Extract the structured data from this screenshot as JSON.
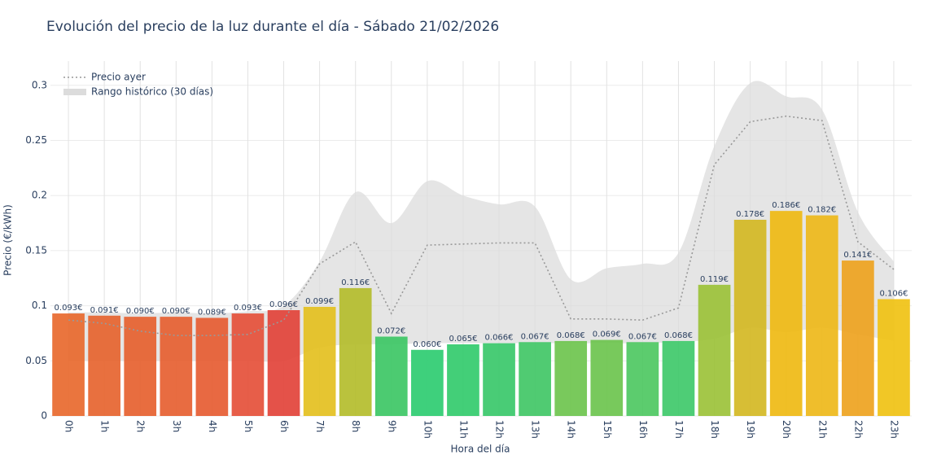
{
  "chart_data": {
    "type": "bar",
    "title": "Evolución del precio de la luz durante el día - Sábado 21/02/2026",
    "x_label": "Hora del día",
    "y_label": "Precio (€/kWh)",
    "categories": [
      "0h",
      "1h",
      "2h",
      "3h",
      "4h",
      "5h",
      "6h",
      "7h",
      "8h",
      "9h",
      "10h",
      "11h",
      "12h",
      "13h",
      "14h",
      "15h",
      "16h",
      "17h",
      "18h",
      "19h",
      "20h",
      "21h",
      "22h",
      "23h"
    ],
    "ylim": [
      0,
      0.322
    ],
    "yticks": [
      0,
      0.05,
      0.1,
      0.15,
      0.2,
      0.25,
      0.3
    ],
    "grid": true,
    "legend": "top-left",
    "bars": {
      "values": [
        0.093,
        0.091,
        0.09,
        0.09,
        0.089,
        0.093,
        0.096,
        0.099,
        0.116,
        0.072,
        0.06,
        0.065,
        0.066,
        0.067,
        0.068,
        0.069,
        0.067,
        0.068,
        0.119,
        0.178,
        0.186,
        0.182,
        0.141,
        0.106
      ],
      "value_labels": [
        "0.093€",
        "0.091€",
        "0.090€",
        "0.090€",
        "0.089€",
        "0.093€",
        "0.096€",
        "0.099€",
        "0.116€",
        "0.072€",
        "0.060€",
        "0.065€",
        "0.066€",
        "0.067€",
        "0.068€",
        "0.069€",
        "0.067€",
        "0.068€",
        "0.119€",
        "0.178€",
        "0.186€",
        "0.182€",
        "0.141€",
        "0.106€"
      ],
      "colors": [
        "#e8692e",
        "#e6642f",
        "#e6612f",
        "#e65f31",
        "#e65c32",
        "#e5503a",
        "#e2433a",
        "#e4c01f",
        "#b4bd2c",
        "#3dc765",
        "#2ecc71",
        "#33cb6c",
        "#3ac86a",
        "#41c766",
        "#6ec44e",
        "#6cc44e",
        "#4ec862",
        "#3fc96a",
        "#9cc23a",
        "#d4b824",
        "#efba14",
        "#eeb81a",
        "#eea320",
        "#f0c214"
      ]
    },
    "line": {
      "name": "Precio ayer",
      "color": "#999999",
      "values": [
        0.087,
        0.084,
        0.077,
        0.073,
        0.073,
        0.074,
        0.087,
        0.138,
        0.158,
        0.093,
        0.155,
        0.156,
        0.157,
        0.157,
        0.088,
        0.088,
        0.087,
        0.098,
        0.228,
        0.267,
        0.272,
        0.268,
        0.158,
        0.133
      ]
    },
    "range": {
      "name": "Rango histórico (30 días)",
      "color": "#dcdcdc",
      "upper": [
        0.094,
        0.094,
        0.093,
        0.094,
        0.093,
        0.095,
        0.1,
        0.14,
        0.203,
        0.175,
        0.213,
        0.2,
        0.192,
        0.19,
        0.124,
        0.134,
        0.138,
        0.148,
        0.245,
        0.302,
        0.29,
        0.278,
        0.185,
        0.14
      ],
      "lower": [
        0.05,
        0.05,
        0.05,
        0.05,
        0.05,
        0.05,
        0.05,
        0.062,
        0.065,
        0.065,
        0.066,
        0.066,
        0.066,
        0.066,
        0.066,
        0.066,
        0.066,
        0.067,
        0.07,
        0.08,
        0.076,
        0.08,
        0.074,
        0.068
      ]
    }
  }
}
